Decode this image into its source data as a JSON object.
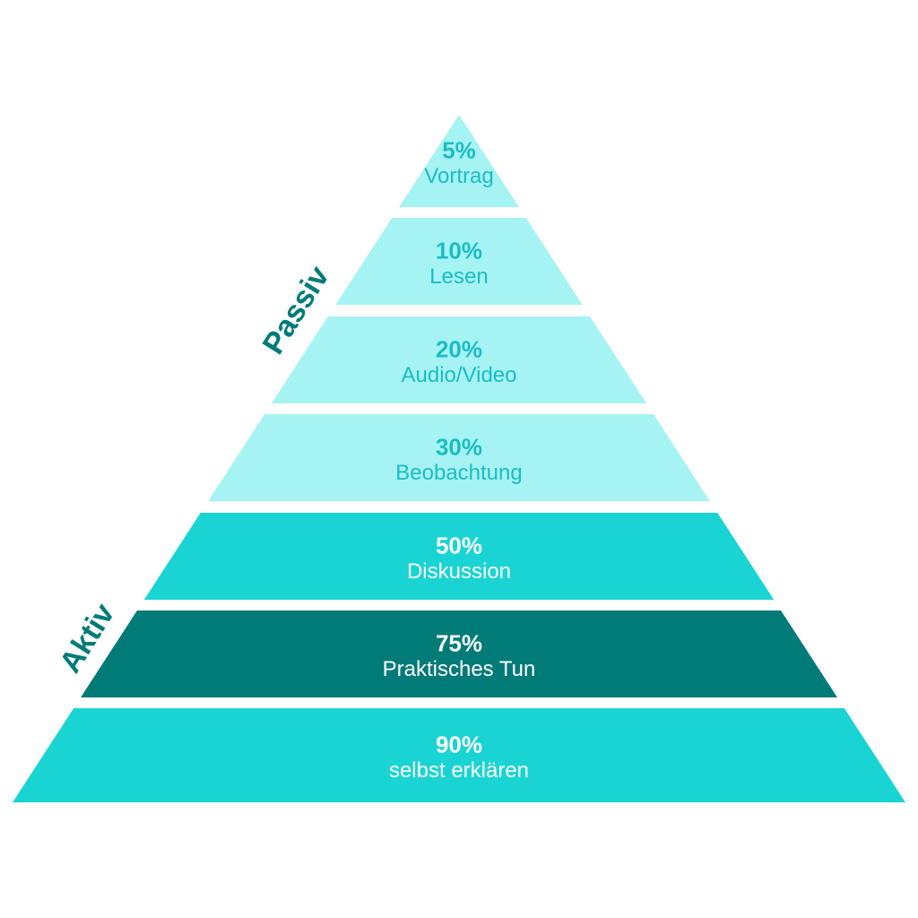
{
  "side_labels": {
    "passive": "Passiv",
    "active": "Aktiv"
  },
  "levels": [
    {
      "percent": "5%",
      "label": "Vortrag"
    },
    {
      "percent": "10%",
      "label": "Lesen"
    },
    {
      "percent": "20%",
      "label": "Audio/Video"
    },
    {
      "percent": "30%",
      "label": "Beobachtung"
    },
    {
      "percent": "50%",
      "label": "Diskussion"
    },
    {
      "percent": "75%",
      "label": "Praktisches Tun"
    },
    {
      "percent": "90%",
      "label": "selbst erklären"
    }
  ]
}
